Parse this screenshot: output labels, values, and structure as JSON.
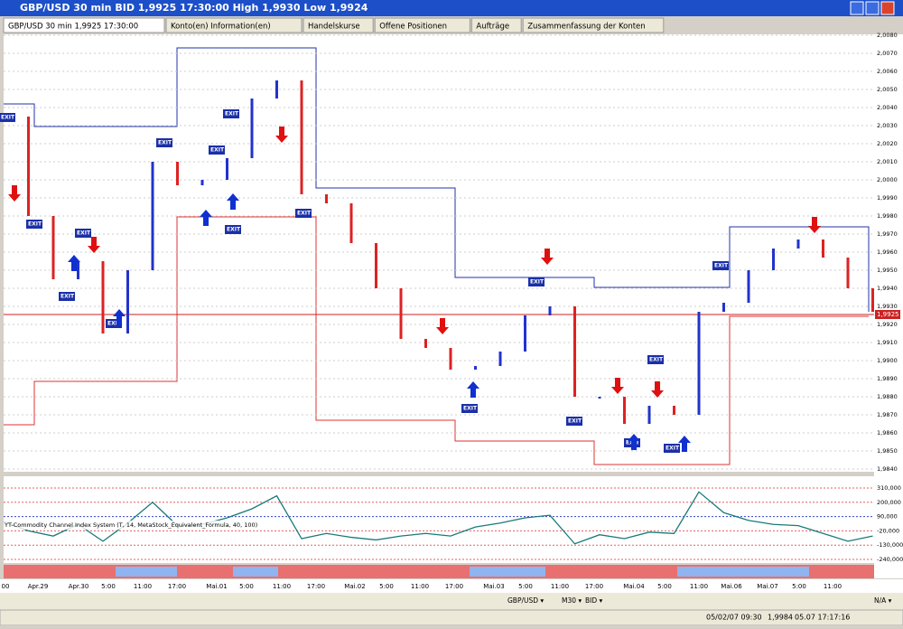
{
  "window": {
    "title": "GBP/USD 30 min BID 1,9925 17:30:00 High 1,9930 Low 1,9924"
  },
  "tabs": [
    "GBP/USD 30 min 1,9925 17:30:00",
    "Konto(en) Information(en)",
    "Handelskurse",
    "Offene Positionen",
    "Aufträge",
    "Zusammenfassung der Konten"
  ],
  "price_axis": [
    "2,0080",
    "2,0070",
    "2,0060",
    "2,0050",
    "2,0040",
    "2,0030",
    "2,0020",
    "2,0010",
    "2,0000",
    "1,9990",
    "1,9980",
    "1,9970",
    "1,9960",
    "1,9950",
    "1,9940",
    "1,9930",
    "1,9920",
    "1,9910",
    "1,9900",
    "1,9890",
    "1,9880",
    "1,9870",
    "1,9860",
    "1,9850",
    "1,9840"
  ],
  "current_price": "1,9925",
  "prices": [
    2.0035,
    1.998,
    1.9945,
    1.9955,
    1.9915,
    1.995,
    2.001,
    1.9997,
    2.0,
    2.0012,
    2.0045,
    2.0055,
    1.9992,
    1.9987,
    1.9965,
    1.994,
    1.9912,
    1.9907,
    1.9895,
    1.9897,
    1.9905,
    1.9925,
    1.993,
    1.988,
    1.988,
    1.9865,
    1.9875,
    1.987,
    1.9927,
    1.9932,
    1.995,
    1.9962,
    1.9967,
    1.9957,
    1.994,
    1.9927
  ],
  "exit_label": "EXIT",
  "indicator": {
    "label": "YT-Commodity Channel Index System (T, 14, MetaStock_Equivalent_Formula, 40, 100)",
    "axis": [
      "310,000",
      "200,000",
      "90,000",
      "-20,000",
      "-130,000",
      "-240,000"
    ],
    "values": [
      50000,
      -20000,
      -60000,
      30000,
      -100000,
      40000,
      200000,
      20000,
      30000,
      80000,
      150000,
      250000,
      -80000,
      -40000,
      -70000,
      -90000,
      -60000,
      -40000,
      -60000,
      10000,
      40000,
      80000,
      100000,
      -120000,
      -50000,
      -80000,
      -30000,
      -40000,
      280000,
      120000,
      60000,
      30000,
      20000,
      -40000,
      -100000,
      -60000
    ]
  },
  "time_axis": [
    "00",
    "Apr.29",
    "Apr.30",
    "5:00",
    "11:00",
    "17:00",
    "Mai.01",
    "5:00",
    "11:00",
    "17:00",
    "Mai.02",
    "5:00",
    "11:00",
    "17:00",
    "Mai.03",
    "5:00",
    "11:00",
    "17:00",
    "Mai.04",
    "5:00",
    "11:00",
    "Mai.06",
    "Mai.07",
    "5:00",
    "11:00"
  ],
  "toolbar": {
    "symbol": "GBP/USD ▾",
    "period": "M30 ▾",
    "side": "BID ▾",
    "right": "N/A ▾"
  },
  "status": {
    "date": "05/02/07 09:30",
    "price": "1,9984",
    "time": "05.07 17:17:16"
  }
}
